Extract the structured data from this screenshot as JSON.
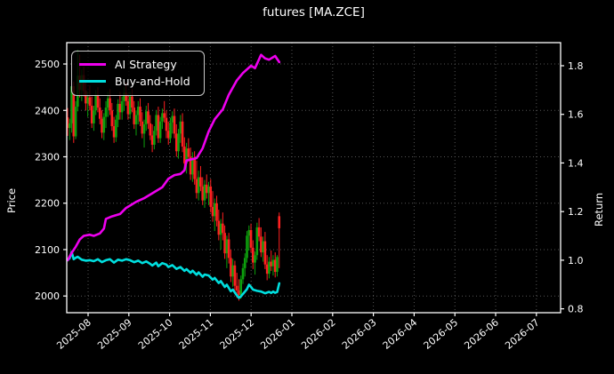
{
  "chart_data": {
    "type": "candlestick",
    "title": "futures [MA.ZCE]",
    "left_axis": {
      "label": "Price",
      "ticks": [
        2000,
        2100,
        2200,
        2300,
        2400,
        2500
      ],
      "ylim": [
        1964,
        2546
      ]
    },
    "right_axis": {
      "label": "Return",
      "ticks": [
        0.8,
        1.0,
        1.2,
        1.4,
        1.6,
        1.8
      ],
      "ylim": [
        0.784,
        1.895
      ]
    },
    "x_tick_labels": [
      "2025-08",
      "2025-09",
      "2025-10",
      "2025-11",
      "2025-12",
      "2026-01",
      "2026-02",
      "2026-03",
      "2026-04",
      "2026-05",
      "2026-06",
      "2026-07"
    ],
    "grid": "dotted",
    "background_color": "#000000",
    "spine_color": "#ffffff",
    "grid_color": "#555555",
    "candles": {
      "up_color": "#0da00d",
      "down_color": "#ff2020",
      "ohlc": [
        [
          2385,
          2405,
          2345,
          2362
        ],
        [
          2362,
          2382,
          2336,
          2372
        ],
        [
          2372,
          2468,
          2352,
          2452
        ],
        [
          2452,
          2462,
          2330,
          2344
        ],
        [
          2344,
          2420,
          2338,
          2408
        ],
        [
          2408,
          2530,
          2398,
          2475
        ],
        [
          2475,
          2520,
          2428,
          2444
        ],
        [
          2444,
          2488,
          2420,
          2476
        ],
        [
          2476,
          2494,
          2430,
          2442
        ],
        [
          2442,
          2462,
          2400,
          2415
        ],
        [
          2415,
          2440,
          2386,
          2428
        ],
        [
          2428,
          2454,
          2400,
          2410
        ],
        [
          2410,
          2430,
          2362,
          2372
        ],
        [
          2372,
          2410,
          2356,
          2400
        ],
        [
          2400,
          2444,
          2390,
          2434
        ],
        [
          2434,
          2450,
          2396,
          2406
        ],
        [
          2406,
          2426,
          2370,
          2382
        ],
        [
          2382,
          2400,
          2340,
          2352
        ],
        [
          2352,
          2394,
          2336,
          2386
        ],
        [
          2386,
          2420,
          2362,
          2406
        ],
        [
          2406,
          2440,
          2386,
          2426
        ],
        [
          2426,
          2446,
          2390,
          2400
        ],
        [
          2400,
          2416,
          2356,
          2366
        ],
        [
          2366,
          2386,
          2330,
          2342
        ],
        [
          2342,
          2390,
          2332,
          2380
        ],
        [
          2380,
          2424,
          2364,
          2414
        ],
        [
          2414,
          2440,
          2380,
          2396
        ],
        [
          2396,
          2430,
          2380,
          2420
        ],
        [
          2420,
          2450,
          2400,
          2438
        ],
        [
          2438,
          2460,
          2410,
          2420
        ],
        [
          2420,
          2436,
          2380,
          2392
        ],
        [
          2392,
          2440,
          2382,
          2430
        ],
        [
          2430,
          2446,
          2396,
          2406
        ],
        [
          2406,
          2420,
          2360,
          2370
        ],
        [
          2370,
          2400,
          2346,
          2390
        ],
        [
          2390,
          2420,
          2370,
          2408
        ],
        [
          2408,
          2426,
          2366,
          2376
        ],
        [
          2376,
          2396,
          2340,
          2350
        ],
        [
          2350,
          2380,
          2320,
          2370
        ],
        [
          2370,
          2410,
          2356,
          2398
        ],
        [
          2398,
          2416,
          2360,
          2372
        ],
        [
          2372,
          2390,
          2336,
          2346
        ],
        [
          2346,
          2370,
          2310,
          2326
        ],
        [
          2326,
          2366,
          2316,
          2356
        ],
        [
          2356,
          2400,
          2346,
          2390
        ],
        [
          2390,
          2408,
          2330,
          2340
        ],
        [
          2340,
          2386,
          2330,
          2376
        ],
        [
          2376,
          2404,
          2360,
          2394
        ],
        [
          2394,
          2420,
          2374,
          2384
        ],
        [
          2384,
          2400,
          2340,
          2356
        ],
        [
          2356,
          2376,
          2326,
          2340
        ],
        [
          2340,
          2384,
          2330,
          2374
        ],
        [
          2374,
          2398,
          2350,
          2388
        ],
        [
          2388,
          2404,
          2340,
          2350
        ],
        [
          2350,
          2370,
          2300,
          2312
        ],
        [
          2312,
          2360,
          2296,
          2350
        ],
        [
          2350,
          2390,
          2330,
          2376
        ],
        [
          2376,
          2394,
          2310,
          2322
        ],
        [
          2322,
          2342,
          2270,
          2286
        ],
        [
          2286,
          2330,
          2264,
          2318
        ],
        [
          2318,
          2340,
          2290,
          2300
        ],
        [
          2300,
          2320,
          2250,
          2262
        ],
        [
          2262,
          2310,
          2246,
          2296
        ],
        [
          2296,
          2312,
          2240,
          2252
        ],
        [
          2252,
          2292,
          2210,
          2222
        ],
        [
          2222,
          2270,
          2206,
          2256
        ],
        [
          2256,
          2280,
          2226,
          2236
        ],
        [
          2236,
          2256,
          2196,
          2206
        ],
        [
          2206,
          2250,
          2190,
          2240
        ],
        [
          2240,
          2262,
          2210,
          2222
        ],
        [
          2222,
          2246,
          2196,
          2236
        ],
        [
          2236,
          2252,
          2180,
          2192
        ],
        [
          2192,
          2226,
          2160,
          2172
        ],
        [
          2172,
          2210,
          2140,
          2200
        ],
        [
          2200,
          2216,
          2150,
          2162
        ],
        [
          2162,
          2186,
          2120,
          2132
        ],
        [
          2132,
          2166,
          2100,
          2156
        ],
        [
          2156,
          2180,
          2120,
          2136
        ],
        [
          2136,
          2152,
          2080,
          2092
        ],
        [
          2092,
          2130,
          2060,
          2122
        ],
        [
          2122,
          2136,
          2070,
          2082
        ],
        [
          2082,
          2100,
          2030,
          2042
        ],
        [
          2042,
          2080,
          2020,
          2066
        ],
        [
          2066,
          2076,
          2010,
          2022
        ],
        [
          2022,
          2050,
          1996,
          2012
        ],
        [
          2012,
          2036,
          1990,
          2002
        ],
        [
          2002,
          2044,
          1994,
          2036
        ],
        [
          2036,
          2070,
          2026,
          2060
        ],
        [
          2060,
          2092,
          2042,
          2082
        ],
        [
          2082,
          2140,
          2072,
          2130
        ],
        [
          2130,
          2152,
          2098,
          2142
        ],
        [
          2142,
          2156,
          2094,
          2104
        ],
        [
          2104,
          2120,
          2058,
          2072
        ],
        [
          2072,
          2096,
          2046,
          2088
        ],
        [
          2088,
          2158,
          2078,
          2148
        ],
        [
          2148,
          2168,
          2118,
          2128
        ],
        [
          2128,
          2148,
          2084,
          2094
        ],
        [
          2094,
          2128,
          2074,
          2118
        ],
        [
          2118,
          2138,
          2058,
          2068
        ],
        [
          2068,
          2088,
          2034,
          2048
        ],
        [
          2048,
          2084,
          2038,
          2074
        ],
        [
          2074,
          2098,
          2054,
          2064
        ],
        [
          2064,
          2088,
          2044,
          2078
        ],
        [
          2078,
          2094,
          2040,
          2052
        ],
        [
          2052,
          2088,
          2042,
          2084
        ],
        [
          2172,
          2180,
          2060,
          2146
        ]
      ]
    },
    "series": [
      {
        "name": "AI Strategy",
        "color": "#ee00ee",
        "axis": "return",
        "points": [
          [
            0,
            1.0
          ],
          [
            2,
            1.03
          ],
          [
            4,
            1.055
          ],
          [
            6,
            1.085
          ],
          [
            8,
            1.1
          ],
          [
            11,
            1.105
          ],
          [
            13,
            1.1
          ],
          [
            16,
            1.11
          ],
          [
            18,
            1.13
          ],
          [
            19,
            1.17
          ],
          [
            22,
            1.18
          ],
          [
            26,
            1.19
          ],
          [
            29,
            1.215
          ],
          [
            34,
            1.24
          ],
          [
            38,
            1.255
          ],
          [
            42,
            1.275
          ],
          [
            47,
            1.3
          ],
          [
            50,
            1.335
          ],
          [
            53,
            1.35
          ],
          [
            56,
            1.355
          ],
          [
            58,
            1.37
          ],
          [
            59,
            1.41
          ],
          [
            64,
            1.42
          ],
          [
            67,
            1.46
          ],
          [
            70,
            1.53
          ],
          [
            73,
            1.58
          ],
          [
            77,
            1.62
          ],
          [
            80,
            1.68
          ],
          [
            84,
            1.74
          ],
          [
            87,
            1.77
          ],
          [
            91,
            1.8
          ],
          [
            93,
            1.79
          ],
          [
            96,
            1.845
          ],
          [
            98,
            1.83
          ],
          [
            100,
            1.825
          ],
          [
            103,
            1.84
          ],
          [
            105,
            1.815
          ]
        ]
      },
      {
        "name": "Buy-and-Hold",
        "color": "#00dede",
        "axis": "return",
        "points": [
          [
            0,
            1.0
          ],
          [
            1,
            1.008
          ],
          [
            2,
            1.034
          ],
          [
            3,
            1.004
          ],
          [
            4,
            1.01
          ],
          [
            5,
            1.014
          ],
          [
            7,
            1.002
          ],
          [
            9,
            0.998
          ],
          [
            11,
            1.0
          ],
          [
            13,
            0.996
          ],
          [
            15,
            1.004
          ],
          [
            17,
            0.992
          ],
          [
            19,
            1.0
          ],
          [
            21,
            1.004
          ],
          [
            23,
            0.99
          ],
          [
            25,
            1.002
          ],
          [
            27,
            0.998
          ],
          [
            29,
            1.004
          ],
          [
            31,
            1.0
          ],
          [
            33,
            0.992
          ],
          [
            35,
            0.998
          ],
          [
            37,
            0.988
          ],
          [
            39,
            0.995
          ],
          [
            41,
            0.985
          ],
          [
            42,
            0.978
          ],
          [
            44,
            0.99
          ],
          [
            45,
            0.975
          ],
          [
            47,
            0.988
          ],
          [
            49,
            0.982
          ],
          [
            50,
            0.972
          ],
          [
            52,
            0.98
          ],
          [
            54,
            0.964
          ],
          [
            56,
            0.972
          ],
          [
            58,
            0.956
          ],
          [
            59,
            0.963
          ],
          [
            61,
            0.948
          ],
          [
            62,
            0.957
          ],
          [
            64,
            0.94
          ],
          [
            65,
            0.95
          ],
          [
            67,
            0.932
          ],
          [
            68,
            0.941
          ],
          [
            70,
            0.937
          ],
          [
            72,
            0.92
          ],
          [
            73,
            0.927
          ],
          [
            75,
            0.906
          ],
          [
            76,
            0.914
          ],
          [
            78,
            0.89
          ],
          [
            79,
            0.899
          ],
          [
            81,
            0.872
          ],
          [
            82,
            0.879
          ],
          [
            84,
            0.855
          ],
          [
            85,
            0.845
          ],
          [
            86,
            0.851
          ],
          [
            87,
            0.861
          ],
          [
            88,
            0.871
          ],
          [
            89,
            0.881
          ],
          [
            90,
            0.899
          ],
          [
            91,
            0.89
          ],
          [
            92,
            0.879
          ],
          [
            94,
            0.874
          ],
          [
            96,
            0.871
          ],
          [
            98,
            0.864
          ],
          [
            100,
            0.87
          ],
          [
            101,
            0.865
          ],
          [
            102,
            0.871
          ],
          [
            103,
            0.866
          ],
          [
            104,
            0.869
          ],
          [
            105,
            0.905
          ]
        ]
      }
    ]
  }
}
